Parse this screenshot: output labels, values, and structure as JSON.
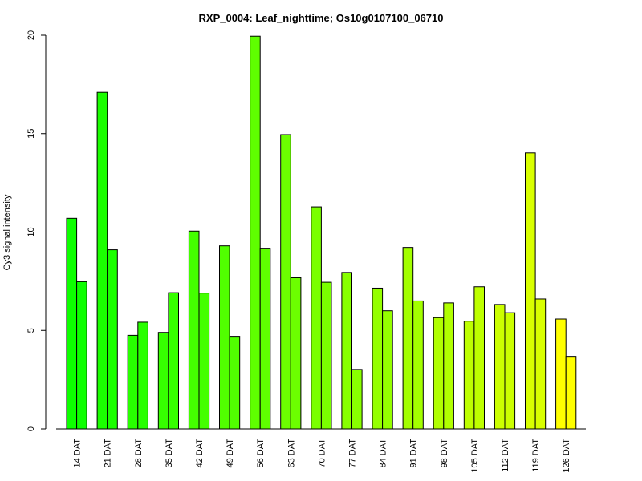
{
  "chart_data": {
    "type": "bar",
    "title": "RXP_0004: Leaf_nighttime; Os10g0107100_06710",
    "ylabel": "Cy3 signal intensity",
    "xlabel": "",
    "ylim": [
      0,
      20
    ],
    "yticks": [
      0,
      5,
      10,
      15,
      20
    ],
    "grid": false,
    "legend": "none",
    "categories": [
      "14 DAT",
      "21 DAT",
      "28 DAT",
      "35 DAT",
      "42 DAT",
      "49 DAT",
      "56 DAT",
      "63 DAT",
      "70 DAT",
      "77 DAT",
      "84 DAT",
      "91 DAT",
      "98 DAT",
      "105 DAT",
      "112 DAT",
      "119 DAT",
      "126 DAT"
    ],
    "series": [
      {
        "values": [
          10.7,
          17.1,
          4.75,
          4.9,
          10.05,
          9.3,
          19.95,
          14.95,
          11.28,
          7.95,
          7.15,
          9.22,
          5.65,
          5.47,
          6.32,
          14.02,
          5.58
        ]
      },
      {
        "values": [
          7.48,
          9.1,
          5.42,
          6.92,
          6.9,
          4.7,
          9.18,
          7.68,
          7.45,
          3.02,
          6.0,
          6.5,
          6.4,
          7.22,
          5.9,
          6.6,
          3.68
        ]
      }
    ],
    "colors": [
      "#0dff00",
      "#1bff00",
      "#28ff00",
      "#36ff00",
      "#44ff00",
      "#51ff00",
      "#5fff00",
      "#6cff00",
      "#7aff00",
      "#88ff00",
      "#95ff00",
      "#a3ff00",
      "#b1ff00",
      "#beff00",
      "#ccff00",
      "#d9ff00",
      "#ffff00"
    ]
  }
}
